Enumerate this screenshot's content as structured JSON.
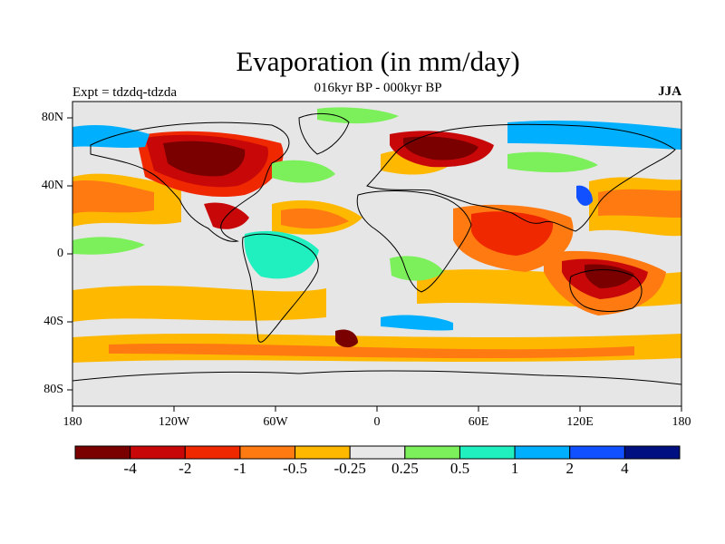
{
  "title": "Evaporation (in mm/day)",
  "subtitle": "016kyr BP - 000kyr BP",
  "left_label": "Expt = tdzdq-tdzda",
  "right_label": "JJA",
  "lat_labels": [
    "80N",
    "40N",
    "0",
    "40S",
    "80S"
  ],
  "lon_labels": [
    "180",
    "120W",
    "60W",
    "0",
    "60E",
    "120E",
    "180"
  ],
  "colorbar": {
    "colors": [
      "#7a0000",
      "#c80808",
      "#f02800",
      "#ff7a10",
      "#ffb800",
      "#e8e8e8",
      "#7cf05a",
      "#20f0c0",
      "#00b0ff",
      "#1050ff",
      "#001080"
    ],
    "labels": [
      "-4",
      "-2",
      "-1",
      "-0.5",
      "-0.25",
      "0.25",
      "0.5",
      "1",
      "2",
      "4"
    ]
  }
}
